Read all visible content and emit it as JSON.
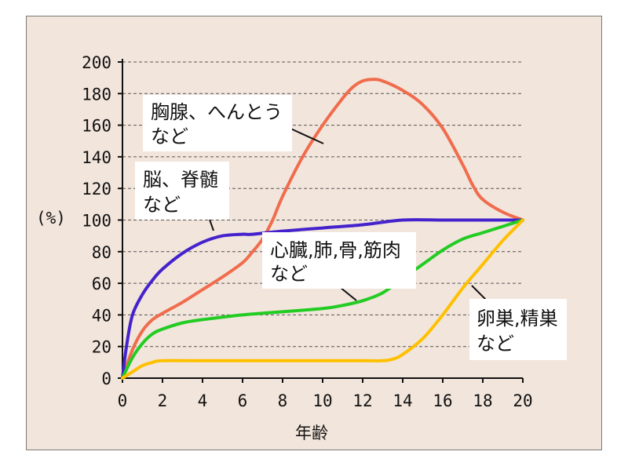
{
  "chart_data": {
    "type": "line",
    "title": "",
    "xlabel": "年齢",
    "ylabel": "(%)",
    "xlim": [
      0,
      20
    ],
    "ylim": [
      0,
      200
    ],
    "x_ticks": [
      0,
      2,
      4,
      6,
      8,
      10,
      12,
      14,
      16,
      18,
      20
    ],
    "y_ticks": [
      0,
      20,
      40,
      60,
      80,
      100,
      120,
      140,
      160,
      180,
      200
    ],
    "grid": "horizontal dashed",
    "series": [
      {
        "label_lines": [
          "胸腺、へんとう",
          "など"
        ],
        "color": "#f06c4c",
        "points": [
          [
            0,
            0
          ],
          [
            0.5,
            18
          ],
          [
            1,
            30
          ],
          [
            1.5,
            37
          ],
          [
            2,
            41
          ],
          [
            3,
            48
          ],
          [
            4,
            56
          ],
          [
            5,
            64
          ],
          [
            6,
            73
          ],
          [
            6.5,
            80
          ],
          [
            7,
            88
          ],
          [
            7.5,
            100
          ],
          [
            8,
            115
          ],
          [
            9,
            140
          ],
          [
            10,
            160
          ],
          [
            11,
            177
          ],
          [
            11.5,
            184
          ],
          [
            12,
            188
          ],
          [
            12.5,
            189
          ],
          [
            13,
            188
          ],
          [
            14,
            182
          ],
          [
            15,
            173
          ],
          [
            16,
            158
          ],
          [
            17,
            135
          ],
          [
            17.5,
            122
          ],
          [
            18,
            113
          ],
          [
            19,
            105
          ],
          [
            20,
            100
          ]
        ]
      },
      {
        "label_lines": [
          "脳、脊髄",
          "など"
        ],
        "color": "#4422cc",
        "points": [
          [
            0,
            0
          ],
          [
            0.2,
            20
          ],
          [
            0.5,
            40
          ],
          [
            1,
            53
          ],
          [
            1.5,
            62
          ],
          [
            2,
            69
          ],
          [
            3,
            79
          ],
          [
            4,
            86
          ],
          [
            5,
            90
          ],
          [
            6,
            91
          ],
          [
            6.5,
            91
          ],
          [
            8,
            93
          ],
          [
            10,
            95
          ],
          [
            12,
            97
          ],
          [
            14,
            100
          ],
          [
            16,
            100
          ],
          [
            18,
            100
          ],
          [
            20,
            100
          ]
        ]
      },
      {
        "label_lines": [
          "心臓,肺,骨,筋肉",
          "など"
        ],
        "color": "#22cc22",
        "points": [
          [
            0,
            0
          ],
          [
            0.5,
            13
          ],
          [
            1,
            22
          ],
          [
            1.5,
            28
          ],
          [
            2,
            31
          ],
          [
            3,
            35
          ],
          [
            4,
            37
          ],
          [
            6,
            40
          ],
          [
            8,
            42
          ],
          [
            10,
            44
          ],
          [
            11,
            46
          ],
          [
            12,
            49
          ],
          [
            13,
            54
          ],
          [
            14,
            63
          ],
          [
            15,
            72
          ],
          [
            16,
            81
          ],
          [
            17,
            88
          ],
          [
            18,
            92
          ],
          [
            19,
            96
          ],
          [
            20,
            100
          ]
        ]
      },
      {
        "label_lines": [
          "卵巣,精巣",
          "など"
        ],
        "color": "#ffc000",
        "points": [
          [
            0,
            0
          ],
          [
            0.5,
            4
          ],
          [
            1,
            8
          ],
          [
            1.5,
            10
          ],
          [
            2,
            11
          ],
          [
            4,
            11
          ],
          [
            6,
            11
          ],
          [
            8,
            11
          ],
          [
            10,
            11
          ],
          [
            12,
            11
          ],
          [
            13,
            11
          ],
          [
            13.5,
            12
          ],
          [
            14,
            15
          ],
          [
            15,
            25
          ],
          [
            16,
            40
          ],
          [
            17,
            57
          ],
          [
            18,
            72
          ],
          [
            19,
            87
          ],
          [
            20,
            100
          ]
        ]
      }
    ]
  }
}
